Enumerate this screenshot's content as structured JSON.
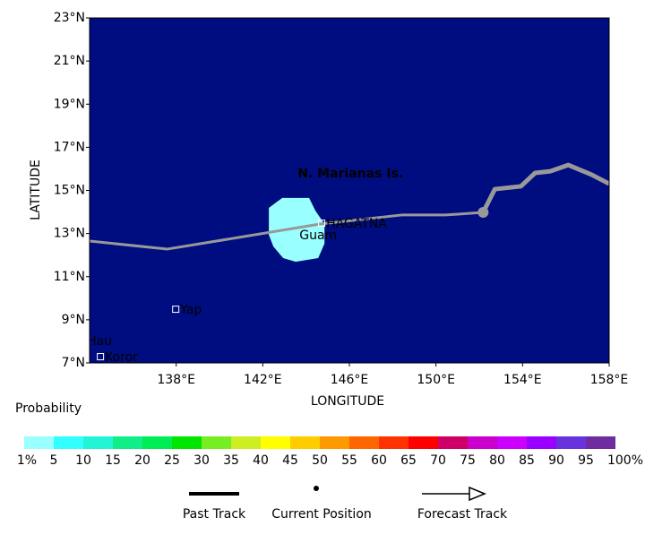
{
  "map": {
    "xlim": [
      134,
      158
    ],
    "ylim": [
      7,
      23
    ],
    "xticks": [
      {
        "value": 138,
        "label": "138°E"
      },
      {
        "value": 142,
        "label": "142°E"
      },
      {
        "value": 146,
        "label": "146°E"
      },
      {
        "value": 150,
        "label": "150°E"
      },
      {
        "value": 154,
        "label": "154°E"
      },
      {
        "value": 158,
        "label": "158°E"
      }
    ],
    "yticks": [
      {
        "value": 7,
        "label": "7°N"
      },
      {
        "value": 9,
        "label": "9°N"
      },
      {
        "value": 11,
        "label": "11°N"
      },
      {
        "value": 13,
        "label": "13°N"
      },
      {
        "value": 15,
        "label": "15°N"
      },
      {
        "value": 17,
        "label": "17°N"
      },
      {
        "value": 19,
        "label": "19°N"
      },
      {
        "value": 21,
        "label": "21°N"
      },
      {
        "value": 23,
        "label": "23°N"
      }
    ],
    "x_label": "LONGITUDE",
    "y_label": "LATITUDE",
    "background": "#000d80",
    "probability_area": {
      "color": "#99ffff",
      "lon": [
        142.9,
        144.14,
        144.43,
        144.85,
        144.85,
        144.56,
        143.52,
        142.94,
        142.49,
        142.28,
        142.28,
        142.61
      ],
      "lat": [
        14.65,
        14.65,
        14.06,
        13.44,
        12.53,
        11.86,
        11.69,
        11.86,
        12.4,
        12.94,
        14.19,
        14.44
      ]
    },
    "track_forecast": {
      "color": "#999999",
      "lon": [
        152.18,
        150.44,
        148.41,
        144.64,
        137.6,
        134
      ],
      "lat": [
        13.98,
        13.86,
        13.86,
        13.44,
        12.28,
        12.65
      ]
    },
    "track_past": {
      "color": "#999999",
      "lon": [
        152.18,
        152.72,
        153.92,
        154.58,
        155.28,
        156.11,
        157.19,
        158
      ],
      "lat": [
        13.98,
        15.06,
        15.19,
        15.81,
        15.89,
        16.18,
        15.73,
        15.31
      ]
    },
    "current_position": {
      "color": "#999999",
      "lon": 152.18,
      "lat": 13.98
    },
    "places": [
      {
        "name": "N. Marianas Is.",
        "lon": 146.05,
        "lat": 15.77,
        "color": "#22cc22",
        "marker": false
      },
      {
        "name": "Guam",
        "lon": 144.56,
        "lat": 12.9,
        "color": "#22cc22",
        "marker": false
      },
      {
        "name": "HAGATNA",
        "lon": 144.72,
        "lat": 13.48,
        "color": "#ffffff",
        "marker": true
      },
      {
        "name": "Yap",
        "lon": 137.98,
        "lat": 9.49,
        "color": "#ffffff",
        "marker": true
      },
      {
        "name": "Koror",
        "lon": 134.5,
        "lat": 7.29,
        "color": "#ffffff",
        "marker": true
      },
      {
        "name": "Hau",
        "lon": 134.46,
        "lat": 8.0,
        "color": "#22cc22",
        "marker": false
      }
    ]
  },
  "probability_legend": {
    "title": "Probability",
    "labels": [
      "1%",
      "5",
      "10",
      "15",
      "20",
      "25",
      "30",
      "35",
      "40",
      "45",
      "50",
      "55",
      "60",
      "65",
      "70",
      "75",
      "80",
      "85",
      "90",
      "95",
      "100%"
    ],
    "colors": [
      "#99ffff",
      "#33ffff",
      "#22f5d5",
      "#11ee88",
      "#00ee55",
      "#00e600",
      "#77ee22",
      "#ccee22",
      "#ffff00",
      "#ffcc00",
      "#ff9900",
      "#ff6600",
      "#ff3300",
      "#ff0000",
      "#cc0066",
      "#cc00cc",
      "#cc00ff",
      "#9900ff",
      "#6633dd",
      "#6f2ca0",
      "#6b0a6e"
    ]
  },
  "track_legend": {
    "past": "Past Track",
    "current": "Current Position",
    "forecast": "Forecast Track"
  }
}
